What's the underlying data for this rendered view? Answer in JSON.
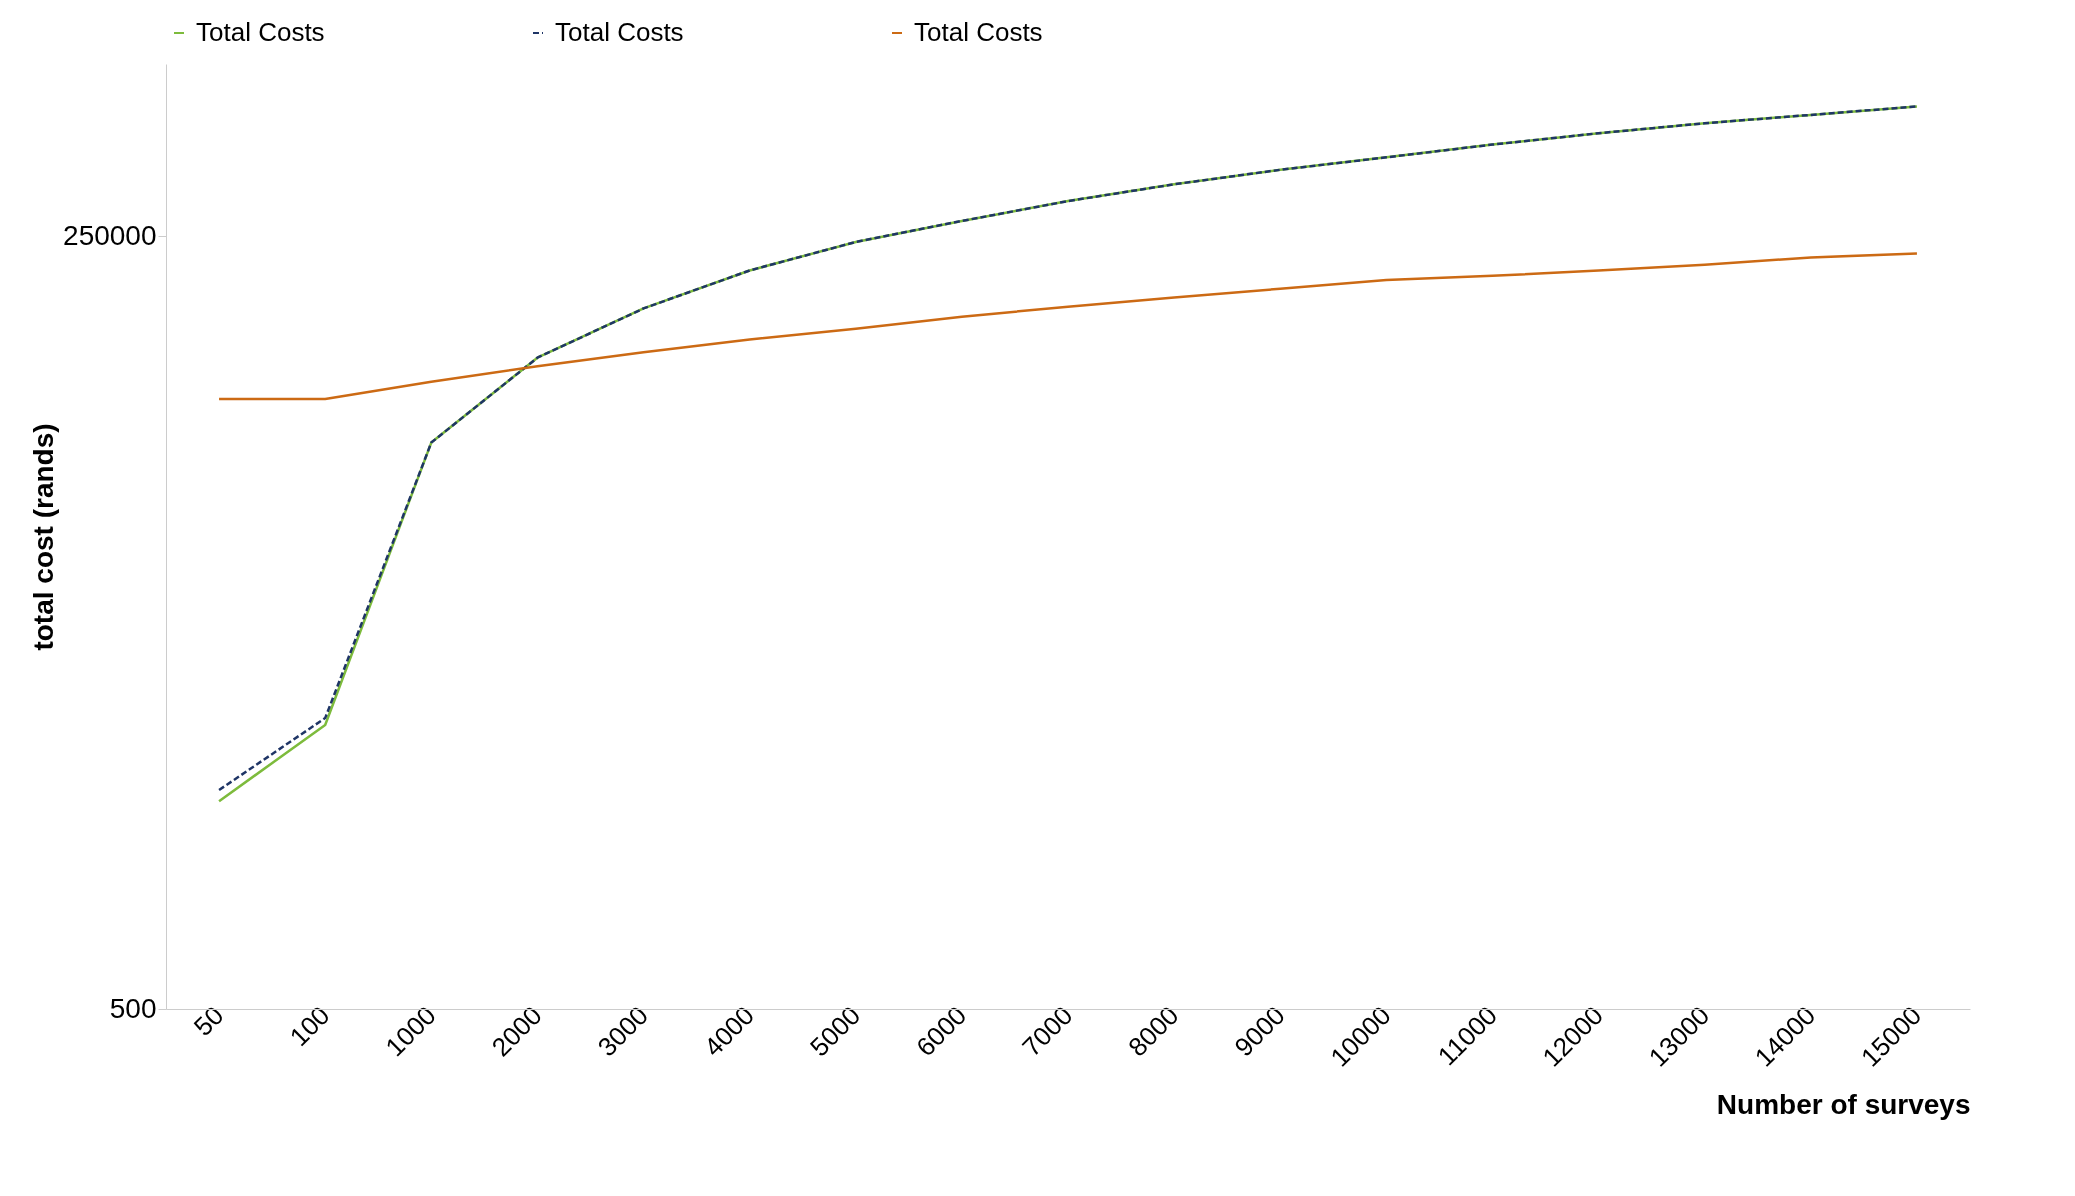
{
  "chart_data": {
    "type": "line",
    "xlabel": "Number of surveys",
    "ylabel": "total cost (rands)",
    "categories": [
      "50",
      "100",
      "1000",
      "2000",
      "3000",
      "4000",
      "5000",
      "6000",
      "7000",
      "8000",
      "9000",
      "10000",
      "11000",
      "12000",
      "13000",
      "14000",
      "15000"
    ],
    "series": [
      {
        "name": "Total Costs",
        "color": "#7dbb3c",
        "line_style": "solid",
        "values": [
          2660,
          4910,
          47600,
          94200,
          140000,
          190000,
          239000,
          283000,
          332000,
          380000,
          427000,
          472000,
          523000,
          573000,
          621000,
          664000,
          711000
        ]
      },
      {
        "name": "Total Costs",
        "color": "#1f3566",
        "line_style": "dashed",
        "values": [
          2910,
          5190,
          47600,
          94200,
          140000,
          190000,
          239000,
          283000,
          332000,
          380000,
          427000,
          472000,
          523000,
          573000,
          621000,
          664000,
          711000
        ]
      },
      {
        "name": "Total Costs",
        "color": "#cc6a14",
        "line_style": "solid",
        "values": [
          67600,
          67600,
          77600,
          87900,
          98400,
          109000,
          119000,
          131000,
          142000,
          153000,
          164000,
          176000,
          182000,
          190000,
          199000,
          211000,
          218000
        ]
      }
    ],
    "log": "y",
    "ylim": [
      500,
      1000000
    ],
    "yticks": [
      500,
      250000
    ],
    "grid": false,
    "legend": "top",
    "marker": "none"
  }
}
